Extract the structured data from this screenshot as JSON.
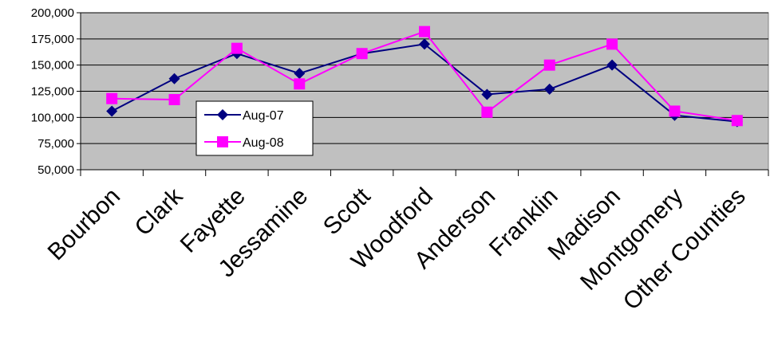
{
  "chart_data": {
    "type": "line",
    "categories": [
      "Bourbon",
      "Clark",
      "Fayette",
      "Jessamine",
      "Scott",
      "Woodford",
      "Anderson",
      "Franklin",
      "Madison",
      "Montgomery",
      "Other Counties"
    ],
    "series": [
      {
        "name": "Aug-07",
        "values": [
          106000,
          137000,
          161000,
          142000,
          161000,
          170000,
          122000,
          127000,
          150000,
          102000,
          96000
        ],
        "color": "#000080",
        "marker": "diamond"
      },
      {
        "name": "Aug-08",
        "values": [
          118000,
          117000,
          166000,
          132000,
          161000,
          182000,
          105000,
          150000,
          170000,
          106000,
          97000
        ],
        "color": "#ff00ff",
        "marker": "square"
      }
    ],
    "ylim": [
      50000,
      200000
    ],
    "yticks": [
      50000,
      75000,
      100000,
      125000,
      150000,
      175000,
      200000
    ],
    "ytick_labels": [
      "50,000",
      "75,000",
      "100,000",
      "125,000",
      "150,000",
      "175,000",
      "200,000"
    ],
    "grid": true,
    "plot_background": "#c0c0c0",
    "legend_position": "center-left",
    "title": "",
    "xlabel": "",
    "ylabel": ""
  }
}
